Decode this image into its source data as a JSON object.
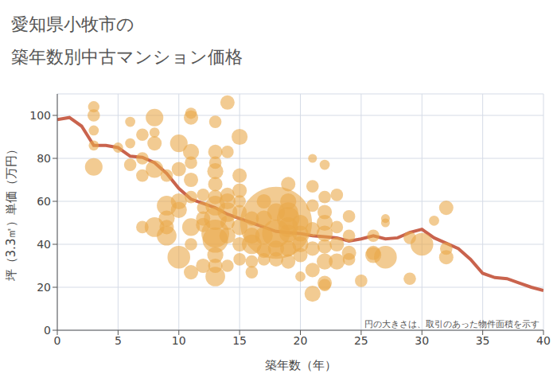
{
  "chart_data": {
    "type": "scatter",
    "title": "愛知県小牧市の\n築年数別中古マンション価格",
    "x_label": "築年数（年）",
    "y_label": "坪（3.3㎡）単価（万円）",
    "annotation": "円の大きさは、取引のあった物件面積を示す",
    "xlim": [
      0,
      40
    ],
    "xticks": [
      0,
      5,
      10,
      15,
      20,
      25,
      30,
      35,
      40
    ],
    "ylim": [
      0,
      110
    ],
    "yticks": [
      0,
      20,
      40,
      60,
      80,
      100
    ],
    "grid": true,
    "series": [
      {
        "type": "scatter",
        "marker": "circle",
        "color": "#eaa94a",
        "x": [
          3,
          3,
          3,
          3,
          3,
          5,
          6,
          6,
          6,
          7,
          7,
          7,
          7,
          8,
          8,
          8,
          8,
          8,
          9,
          9,
          9,
          9,
          9,
          10,
          10,
          10,
          10,
          10,
          11,
          11,
          11,
          11,
          11,
          11,
          11,
          11,
          11,
          12,
          12,
          12,
          12,
          12,
          13,
          13,
          13,
          13,
          13,
          13,
          13,
          13,
          13,
          13,
          13,
          13,
          13,
          14,
          14,
          14,
          14,
          14,
          14,
          14,
          14,
          15,
          15,
          15,
          15,
          15,
          15,
          15,
          15,
          16,
          16,
          16,
          16,
          16,
          17,
          17,
          17,
          17,
          17,
          18,
          18,
          18,
          18,
          18,
          19,
          19,
          19,
          19,
          19,
          19,
          19,
          19,
          20,
          20,
          20,
          20,
          20,
          21,
          21,
          21,
          21,
          21,
          21,
          21,
          22,
          22,
          22,
          22,
          22,
          22,
          22,
          22,
          22,
          23,
          23,
          23,
          23,
          24,
          24,
          24,
          24,
          25,
          26,
          26,
          26,
          27,
          27,
          27,
          29,
          29,
          30,
          31,
          32,
          32,
          32
        ],
        "values": [
          104,
          100,
          93,
          86,
          76,
          85,
          97,
          87,
          77,
          91,
          80,
          72,
          48,
          99,
          92,
          87,
          75,
          48,
          58,
          52,
          48,
          44,
          72,
          87,
          75,
          60,
          56,
          34,
          101,
          99,
          83,
          78,
          70,
          62,
          48,
          40,
          27,
          63,
          57,
          52,
          49,
          30,
          97,
          83,
          78,
          74,
          68,
          62,
          58,
          52,
          45,
          42,
          35,
          30,
          25,
          106,
          83,
          63,
          60,
          55,
          50,
          44,
          30,
          90,
          72,
          65,
          60,
          55,
          48,
          40,
          33,
          52,
          44,
          40,
          32,
          27,
          60,
          52,
          44,
          37,
          33,
          55,
          50,
          45,
          38,
          33,
          68,
          60,
          55,
          52,
          48,
          45,
          38,
          32,
          50,
          45,
          40,
          35,
          25,
          80,
          67,
          58,
          47,
          38,
          28,
          17,
          77,
          62,
          55,
          50,
          45,
          39,
          32,
          22,
          21,
          63,
          48,
          40,
          32,
          53,
          44,
          36,
          33,
          23,
          44,
          36,
          35,
          52,
          50,
          34,
          24,
          43,
          40,
          51,
          57,
          38,
          34
        ],
        "size": [
          50,
          60,
          40,
          40,
          120,
          40,
          40,
          40,
          60,
          60,
          60,
          60,
          60,
          120,
          40,
          80,
          120,
          150,
          150,
          100,
          80,
          150,
          60,
          120,
          80,
          100,
          100,
          200,
          50,
          80,
          100,
          60,
          80,
          60,
          120,
          60,
          80,
          60,
          60,
          80,
          80,
          80,
          60,
          80,
          60,
          100,
          80,
          80,
          150,
          200,
          300,
          250,
          100,
          80,
          150,
          80,
          60,
          80,
          100,
          150,
          80,
          100,
          60,
          100,
          80,
          80,
          60,
          80,
          100,
          80,
          60,
          80,
          100,
          150,
          60,
          60,
          80,
          100,
          120,
          80,
          60,
          120,
          2000,
          300,
          100,
          80,
          80,
          100,
          150,
          200,
          150,
          120,
          100,
          80,
          100,
          100,
          100,
          80,
          40,
          30,
          60,
          60,
          80,
          80,
          80,
          100,
          40,
          60,
          80,
          100,
          100,
          80,
          100,
          80,
          60,
          60,
          60,
          80,
          100,
          60,
          60,
          80,
          60,
          60,
          60,
          80,
          100,
          30,
          30,
          200,
          60,
          60,
          200,
          40,
          80,
          60,
          80
        ]
      },
      {
        "type": "line",
        "color": "#c9634d",
        "x": [
          0,
          1,
          2,
          3,
          4,
          5,
          6,
          7,
          8,
          9,
          10,
          11,
          12,
          13,
          14,
          15,
          16,
          17,
          18,
          19,
          20,
          21,
          22,
          23,
          24,
          25,
          26,
          27,
          28,
          29,
          30,
          31,
          32,
          33,
          34,
          35,
          36,
          37,
          38,
          39,
          40
        ],
        "values": [
          98,
          99,
          95,
          86,
          86,
          85,
          81,
          80.5,
          78,
          73,
          66,
          61,
          59,
          57,
          54,
          52,
          50,
          48,
          46,
          45.5,
          45,
          44,
          43.5,
          43,
          41.5,
          42.5,
          44,
          42.5,
          43,
          45.5,
          47,
          43,
          40.5,
          38,
          33,
          26.5,
          24.5,
          24,
          22,
          20,
          18.5
        ]
      }
    ]
  }
}
